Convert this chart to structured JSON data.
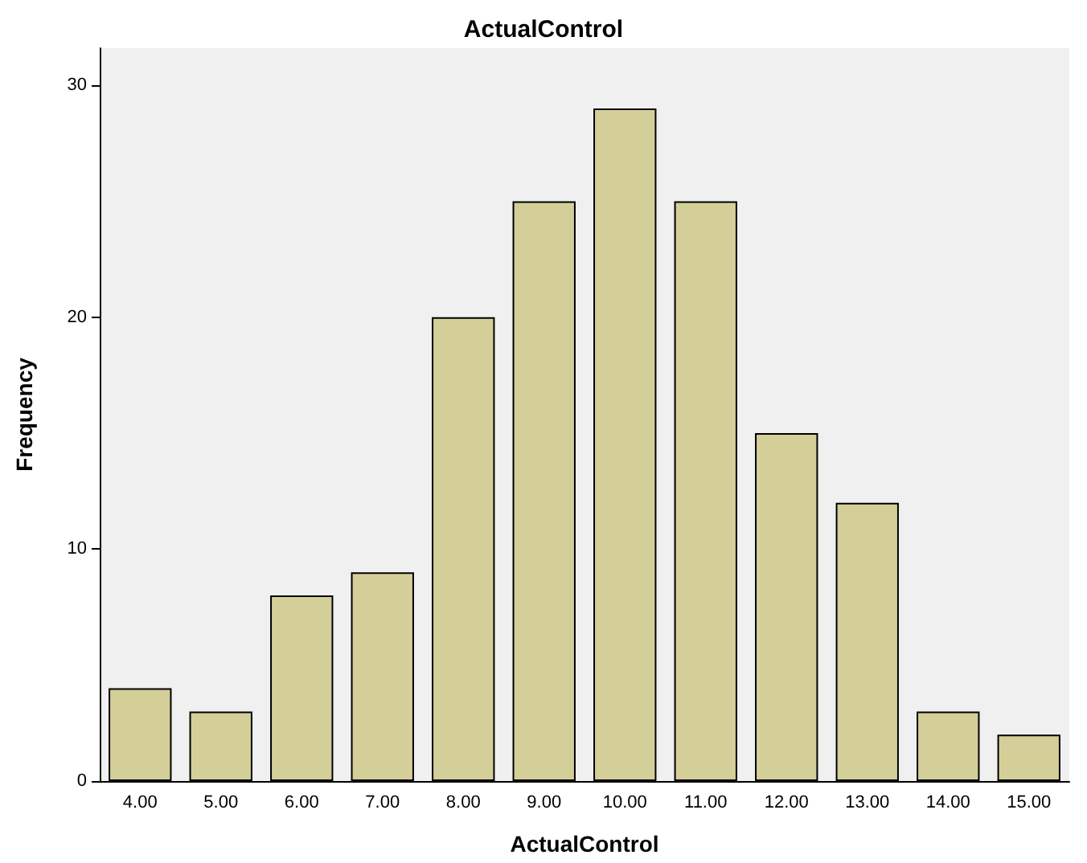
{
  "chart_data": {
    "type": "bar",
    "title": "ActualControl",
    "xlabel": "ActualControl",
    "ylabel": "Frequency",
    "categories": [
      "4.00",
      "5.00",
      "6.00",
      "7.00",
      "8.00",
      "9.00",
      "10.00",
      "11.00",
      "12.00",
      "13.00",
      "14.00",
      "15.00"
    ],
    "values": [
      4,
      3,
      8,
      9,
      20,
      25,
      29,
      25,
      15,
      12,
      3,
      2
    ],
    "color": "#d4cf98",
    "ylim": [
      0,
      31.6
    ],
    "yticks": [
      0,
      10,
      20,
      30
    ]
  }
}
